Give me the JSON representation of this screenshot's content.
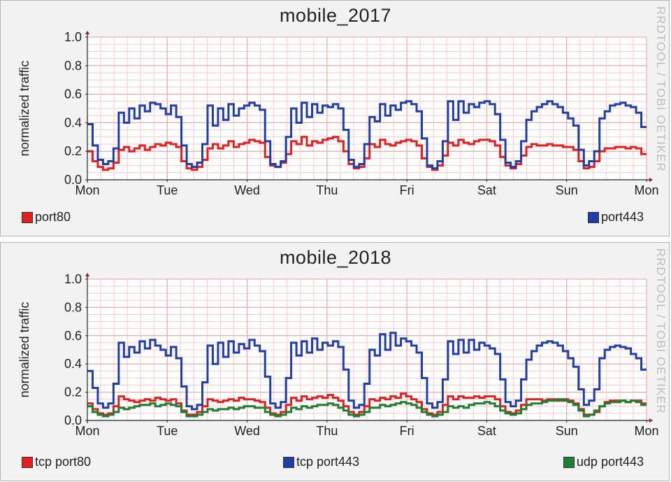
{
  "watermark": "RRDTOOL / TOBI OETIKER",
  "chart_data": [
    {
      "type": "line",
      "title": "mobile_2017",
      "ylabel": "normalized traffic",
      "xlabel": "",
      "ylim": [
        0,
        1.0
      ],
      "yticks": [
        "0.0",
        "0.2",
        "0.4",
        "0.6",
        "0.8",
        "1.0"
      ],
      "xticks": [
        "Mon",
        "Tue",
        "Wed",
        "Thu",
        "Fri",
        "Sat",
        "Sun",
        "Mon"
      ],
      "grid": true,
      "legend": "bottom",
      "series": [
        {
          "name": "port80",
          "color": "#e02020",
          "values": [
            0.2,
            0.13,
            0.09,
            0.07,
            0.08,
            0.12,
            0.21,
            0.23,
            0.2,
            0.22,
            0.24,
            0.21,
            0.23,
            0.25,
            0.24,
            0.26,
            0.25,
            0.23,
            0.13,
            0.08,
            0.07,
            0.09,
            0.14,
            0.22,
            0.25,
            0.22,
            0.24,
            0.27,
            0.23,
            0.25,
            0.26,
            0.28,
            0.27,
            0.26,
            0.16,
            0.1,
            0.09,
            0.12,
            0.18,
            0.27,
            0.25,
            0.3,
            0.24,
            0.27,
            0.26,
            0.28,
            0.29,
            0.3,
            0.27,
            0.2,
            0.11,
            0.08,
            0.09,
            0.15,
            0.25,
            0.23,
            0.28,
            0.25,
            0.24,
            0.26,
            0.27,
            0.28,
            0.27,
            0.24,
            0.15,
            0.09,
            0.07,
            0.1,
            0.17,
            0.26,
            0.24,
            0.28,
            0.26,
            0.25,
            0.27,
            0.28,
            0.28,
            0.27,
            0.24,
            0.16,
            0.1,
            0.08,
            0.11,
            0.17,
            0.23,
            0.25,
            0.24,
            0.24,
            0.25,
            0.24,
            0.24,
            0.23,
            0.23,
            0.21,
            0.13,
            0.08,
            0.09,
            0.13,
            0.2,
            0.22,
            0.22,
            0.23,
            0.23,
            0.22,
            0.23,
            0.22,
            0.18
          ]
        },
        {
          "name": "port443",
          "color": "#1f3fa6",
          "values": [
            0.39,
            0.24,
            0.14,
            0.11,
            0.13,
            0.22,
            0.47,
            0.4,
            0.5,
            0.43,
            0.52,
            0.48,
            0.54,
            0.53,
            0.5,
            0.46,
            0.52,
            0.44,
            0.24,
            0.11,
            0.09,
            0.12,
            0.25,
            0.52,
            0.38,
            0.5,
            0.42,
            0.53,
            0.45,
            0.5,
            0.52,
            0.54,
            0.52,
            0.49,
            0.27,
            0.11,
            0.09,
            0.13,
            0.3,
            0.5,
            0.4,
            0.54,
            0.44,
            0.53,
            0.47,
            0.52,
            0.51,
            0.53,
            0.5,
            0.35,
            0.14,
            0.09,
            0.11,
            0.25,
            0.44,
            0.41,
            0.53,
            0.45,
            0.52,
            0.49,
            0.54,
            0.55,
            0.53,
            0.48,
            0.29,
            0.1,
            0.08,
            0.13,
            0.27,
            0.55,
            0.42,
            0.55,
            0.47,
            0.53,
            0.51,
            0.54,
            0.55,
            0.53,
            0.46,
            0.28,
            0.12,
            0.09,
            0.13,
            0.27,
            0.42,
            0.48,
            0.51,
            0.53,
            0.55,
            0.53,
            0.51,
            0.47,
            0.43,
            0.38,
            0.21,
            0.1,
            0.13,
            0.2,
            0.43,
            0.48,
            0.52,
            0.53,
            0.54,
            0.52,
            0.51,
            0.47,
            0.37
          ]
        }
      ]
    },
    {
      "type": "line",
      "title": "mobile_2018",
      "ylabel": "normalized traffic",
      "xlabel": "",
      "ylim": [
        0,
        1.0
      ],
      "yticks": [
        "0.0",
        "0.2",
        "0.4",
        "0.6",
        "0.8",
        "1.0"
      ],
      "xticks": [
        "Mon",
        "Tue",
        "Wed",
        "Thu",
        "Fri",
        "Sat",
        "Sun",
        "Mon"
      ],
      "grid": true,
      "legend": "bottom",
      "series": [
        {
          "name": "tcp port80",
          "color": "#e02020",
          "values": [
            0.12,
            0.08,
            0.05,
            0.04,
            0.05,
            0.1,
            0.17,
            0.15,
            0.14,
            0.13,
            0.14,
            0.15,
            0.14,
            0.16,
            0.15,
            0.14,
            0.15,
            0.12,
            0.07,
            0.04,
            0.04,
            0.06,
            0.1,
            0.15,
            0.14,
            0.13,
            0.14,
            0.15,
            0.14,
            0.16,
            0.15,
            0.15,
            0.14,
            0.13,
            0.09,
            0.05,
            0.04,
            0.06,
            0.11,
            0.16,
            0.14,
            0.17,
            0.15,
            0.16,
            0.17,
            0.16,
            0.18,
            0.16,
            0.14,
            0.1,
            0.06,
            0.04,
            0.06,
            0.1,
            0.15,
            0.14,
            0.16,
            0.15,
            0.17,
            0.16,
            0.19,
            0.17,
            0.15,
            0.13,
            0.08,
            0.05,
            0.04,
            0.06,
            0.11,
            0.17,
            0.15,
            0.17,
            0.16,
            0.16,
            0.17,
            0.16,
            0.17,
            0.17,
            0.15,
            0.1,
            0.06,
            0.05,
            0.07,
            0.11,
            0.15,
            0.15,
            0.15,
            0.14,
            0.15,
            0.15,
            0.14,
            0.15,
            0.14,
            0.12,
            0.08,
            0.04,
            0.04,
            0.06,
            0.1,
            0.13,
            0.14,
            0.14,
            0.14,
            0.13,
            0.14,
            0.14,
            0.12
          ]
        },
        {
          "name": "tcp port443",
          "color": "#1f3fa6",
          "values": [
            0.35,
            0.23,
            0.12,
            0.09,
            0.12,
            0.26,
            0.55,
            0.45,
            0.52,
            0.48,
            0.56,
            0.51,
            0.57,
            0.53,
            0.5,
            0.46,
            0.52,
            0.44,
            0.24,
            0.1,
            0.08,
            0.11,
            0.27,
            0.53,
            0.4,
            0.55,
            0.45,
            0.56,
            0.48,
            0.54,
            0.51,
            0.57,
            0.53,
            0.49,
            0.31,
            0.12,
            0.09,
            0.13,
            0.3,
            0.55,
            0.46,
            0.56,
            0.48,
            0.58,
            0.5,
            0.55,
            0.53,
            0.56,
            0.52,
            0.36,
            0.14,
            0.09,
            0.11,
            0.26,
            0.5,
            0.46,
            0.61,
            0.5,
            0.62,
            0.53,
            0.58,
            0.56,
            0.53,
            0.48,
            0.3,
            0.12,
            0.09,
            0.13,
            0.29,
            0.56,
            0.47,
            0.57,
            0.48,
            0.57,
            0.5,
            0.55,
            0.53,
            0.51,
            0.47,
            0.29,
            0.13,
            0.1,
            0.14,
            0.29,
            0.43,
            0.49,
            0.53,
            0.55,
            0.56,
            0.55,
            0.53,
            0.49,
            0.44,
            0.38,
            0.22,
            0.11,
            0.14,
            0.22,
            0.44,
            0.5,
            0.52,
            0.53,
            0.52,
            0.51,
            0.47,
            0.44,
            0.36
          ]
        },
        {
          "name": "udp port443",
          "color": "#1e7e32",
          "values": [
            0.1,
            0.06,
            0.04,
            0.03,
            0.04,
            0.06,
            0.09,
            0.08,
            0.09,
            0.1,
            0.11,
            0.11,
            0.12,
            0.1,
            0.11,
            0.12,
            0.11,
            0.1,
            0.06,
            0.03,
            0.03,
            0.04,
            0.06,
            0.08,
            0.07,
            0.08,
            0.08,
            0.09,
            0.08,
            0.09,
            0.1,
            0.1,
            0.09,
            0.09,
            0.06,
            0.04,
            0.03,
            0.04,
            0.06,
            0.09,
            0.08,
            0.1,
            0.09,
            0.1,
            0.11,
            0.11,
            0.12,
            0.11,
            0.09,
            0.07,
            0.04,
            0.03,
            0.04,
            0.06,
            0.09,
            0.09,
            0.11,
            0.1,
            0.11,
            0.12,
            0.13,
            0.12,
            0.11,
            0.09,
            0.06,
            0.04,
            0.03,
            0.04,
            0.06,
            0.1,
            0.09,
            0.1,
            0.09,
            0.11,
            0.12,
            0.12,
            0.13,
            0.12,
            0.1,
            0.07,
            0.05,
            0.04,
            0.05,
            0.08,
            0.11,
            0.12,
            0.12,
            0.13,
            0.14,
            0.14,
            0.15,
            0.14,
            0.13,
            0.11,
            0.07,
            0.03,
            0.04,
            0.07,
            0.1,
            0.12,
            0.13,
            0.13,
            0.14,
            0.13,
            0.14,
            0.13,
            0.11
          ]
        }
      ]
    }
  ]
}
